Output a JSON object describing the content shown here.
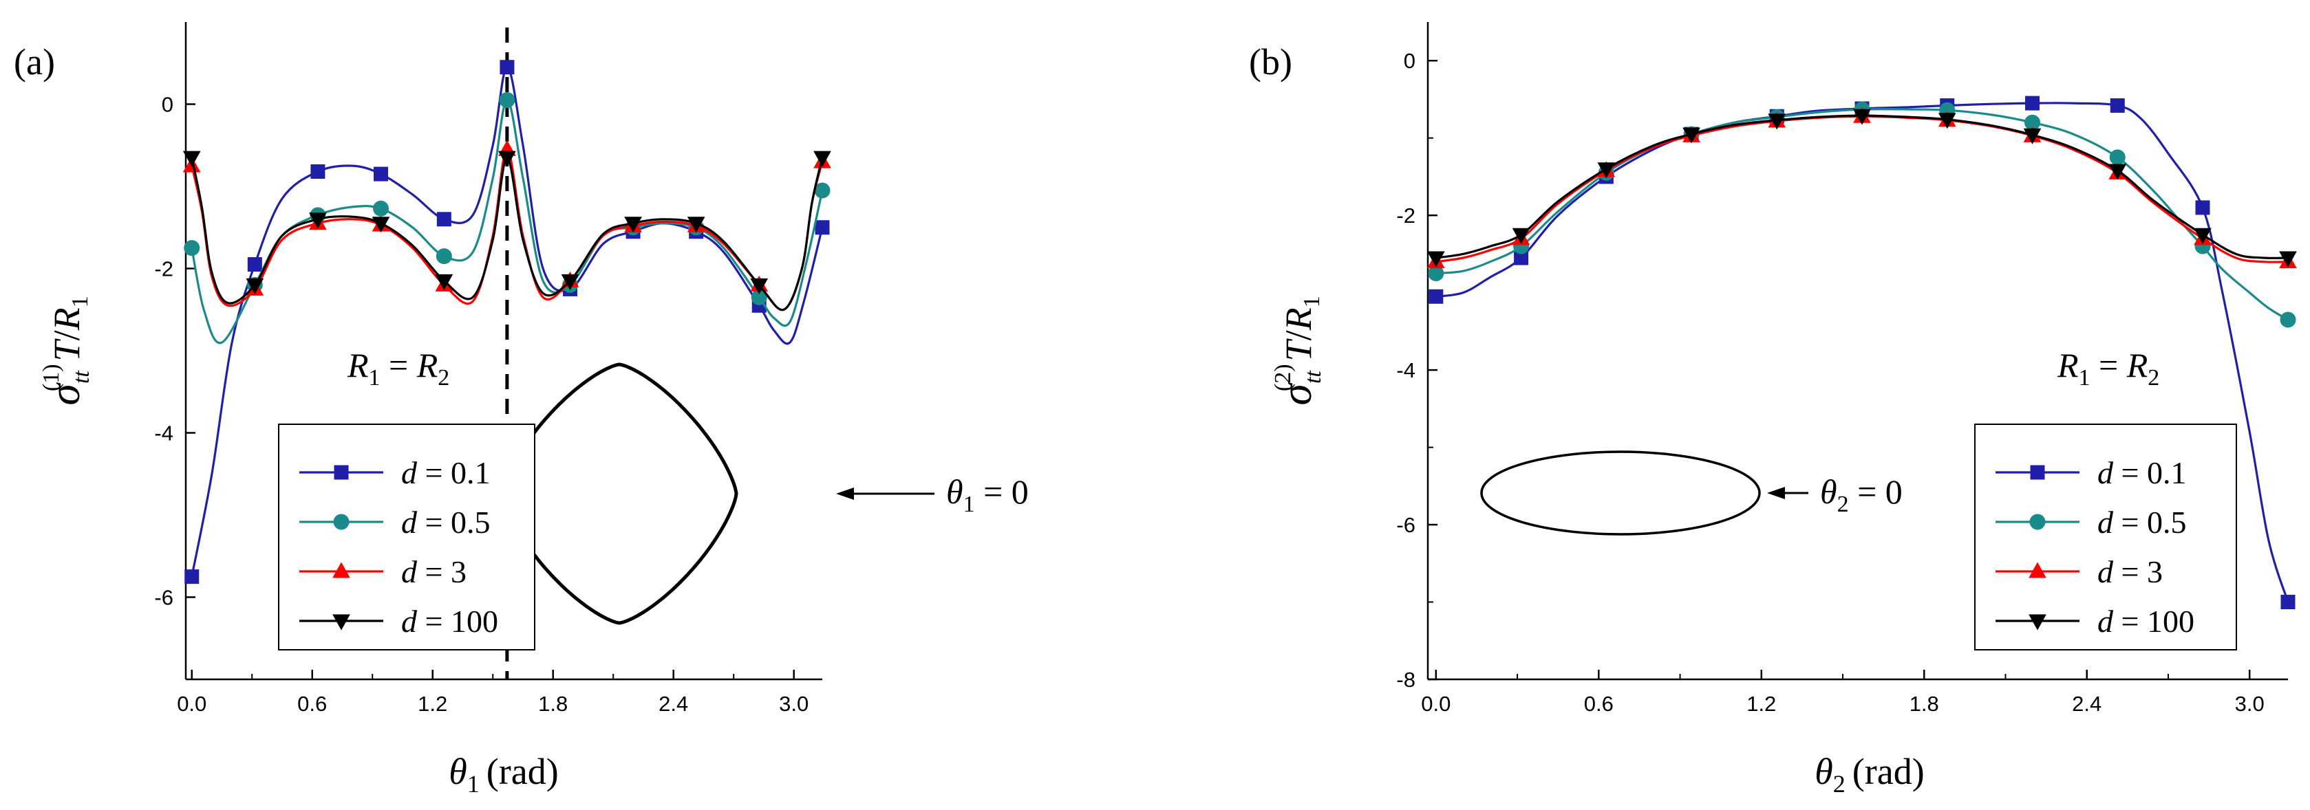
{
  "chart_data": [
    {
      "type": "line",
      "panel_label": "(a)",
      "xlabel": {
        "var": "θ",
        "sub": "1",
        "unit": "(rad)"
      },
      "ylabel": {
        "sigma": "σ",
        "sub": "tt",
        "sup": "(1)",
        "rest_T": "T",
        "rest_R": "R",
        "rest_sub": "1"
      },
      "xlim": [
        -0.03,
        3.1416
      ],
      "ylim": [
        -7,
        1
      ],
      "xticks": [
        0.0,
        0.6,
        1.2,
        1.8,
        2.4,
        3.0
      ],
      "xtick_labels": [
        "0.0",
        "0.6",
        "1.2",
        "1.8",
        "2.4",
        "3.0"
      ],
      "yticks": [
        0,
        -2,
        -4,
        -6
      ],
      "ytick_labels": [
        "0",
        "-2",
        "-4",
        "-6"
      ],
      "vline_x": 1.5708,
      "annotation": {
        "R": "R",
        "sub1": "1",
        "eq": " = ",
        "sub2": "2"
      },
      "inset": {
        "shape": "diamond",
        "label_var": "θ",
        "label_sub": "1",
        "label_val": " = 0"
      },
      "legend": {
        "position": "lower-left",
        "var": "d",
        "labels": [
          "0.1",
          "0.5",
          "3",
          "100"
        ]
      },
      "series": [
        {
          "name": "d = 0.1",
          "color": "#1f1fa8",
          "marker": "square",
          "x": [
            0,
            0.1,
            0.2,
            0.314,
            0.45,
            0.628,
            0.8,
            0.942,
            1.1,
            1.257,
            1.4,
            1.5,
            1.571,
            1.65,
            1.75,
            1.885,
            2.05,
            2.199,
            2.35,
            2.513,
            2.65,
            2.827,
            2.9,
            2.98,
            3.05,
            3.1416
          ],
          "y": [
            -5.75,
            -4.5,
            -2.9,
            -1.95,
            -1.15,
            -0.82,
            -0.75,
            -0.85,
            -1.1,
            -1.4,
            -1.35,
            -0.5,
            0.45,
            -0.5,
            -2.0,
            -2.25,
            -1.7,
            -1.55,
            -1.45,
            -1.55,
            -1.8,
            -2.45,
            -2.75,
            -2.9,
            -2.4,
            -1.5
          ],
          "mx": [
            0,
            0.314,
            0.628,
            0.942,
            1.257,
            1.571,
            1.885,
            2.199,
            2.513,
            2.827,
            3.1416
          ]
        },
        {
          "name": "d = 0.5",
          "color": "#1a8a8a",
          "marker": "circle",
          "x": [
            0,
            0.06,
            0.15,
            0.314,
            0.45,
            0.628,
            0.8,
            0.942,
            1.1,
            1.257,
            1.4,
            1.5,
            1.571,
            1.65,
            1.75,
            1.885,
            2.05,
            2.199,
            2.35,
            2.513,
            2.65,
            2.827,
            2.9,
            2.98,
            3.06,
            3.1416
          ],
          "y": [
            -1.75,
            -2.5,
            -2.9,
            -2.2,
            -1.6,
            -1.35,
            -1.25,
            -1.27,
            -1.5,
            -1.85,
            -1.8,
            -0.9,
            0.05,
            -0.9,
            -2.15,
            -2.2,
            -1.6,
            -1.5,
            -1.45,
            -1.5,
            -1.75,
            -2.35,
            -2.6,
            -2.65,
            -1.95,
            -1.05
          ],
          "mx": [
            0,
            0.314,
            0.628,
            0.942,
            1.257,
            1.571,
            1.885,
            2.199,
            2.513,
            2.827,
            3.1416
          ]
        },
        {
          "name": "d = 3",
          "color": "#ff0000",
          "marker": "triangle-up",
          "x": [
            0,
            0.05,
            0.1,
            0.18,
            0.314,
            0.45,
            0.628,
            0.8,
            0.942,
            1.1,
            1.257,
            1.4,
            1.5,
            1.571,
            1.65,
            1.75,
            1.885,
            2.05,
            2.199,
            2.35,
            2.513,
            2.65,
            2.827,
            2.95,
            3.04,
            3.09,
            3.1416
          ],
          "y": [
            -0.75,
            -1.3,
            -2.1,
            -2.45,
            -2.25,
            -1.65,
            -1.45,
            -1.4,
            -1.47,
            -1.75,
            -2.2,
            -2.4,
            -1.6,
            -0.55,
            -1.6,
            -2.35,
            -2.15,
            -1.6,
            -1.48,
            -1.43,
            -1.48,
            -1.7,
            -2.2,
            -2.5,
            -2.0,
            -1.2,
            -0.7
          ],
          "mx": [
            0,
            0.314,
            0.628,
            0.942,
            1.257,
            1.571,
            1.885,
            2.199,
            2.513,
            2.827,
            3.1416
          ]
        },
        {
          "name": "d = 100",
          "color": "#000000",
          "marker": "triangle-down",
          "x": [
            0,
            0.05,
            0.1,
            0.18,
            0.314,
            0.45,
            0.628,
            0.8,
            0.942,
            1.1,
            1.257,
            1.4,
            1.5,
            1.571,
            1.65,
            1.75,
            1.885,
            2.05,
            2.199,
            2.35,
            2.513,
            2.65,
            2.827,
            2.95,
            3.04,
            3.09,
            3.1416
          ],
          "y": [
            -0.65,
            -1.25,
            -2.05,
            -2.42,
            -2.2,
            -1.6,
            -1.4,
            -1.37,
            -1.45,
            -1.72,
            -2.15,
            -2.35,
            -1.65,
            -0.65,
            -1.65,
            -2.3,
            -2.15,
            -1.58,
            -1.45,
            -1.4,
            -1.45,
            -1.67,
            -2.2,
            -2.5,
            -2.0,
            -1.2,
            -0.65
          ],
          "mx": [
            0,
            0.314,
            0.628,
            0.942,
            1.257,
            1.571,
            1.885,
            2.199,
            2.513,
            2.827,
            3.1416
          ]
        }
      ]
    },
    {
      "type": "line",
      "panel_label": "(b)",
      "xlabel": {
        "var": "θ",
        "sub": "2",
        "unit": "(rad)"
      },
      "ylabel": {
        "sigma": "σ",
        "sub": "tt",
        "sup": "(2)",
        "rest_T": "T",
        "rest_R": "R",
        "rest_sub": "1"
      },
      "xlim": [
        -0.03,
        3.1416
      ],
      "ylim": [
        -8,
        0.5
      ],
      "xticks": [
        0.0,
        0.6,
        1.2,
        1.8,
        2.4,
        3.0
      ],
      "xtick_labels": [
        "0.0",
        "0.6",
        "1.2",
        "1.8",
        "2.4",
        "3.0"
      ],
      "yticks": [
        0,
        -2,
        -4,
        -6,
        -8
      ],
      "ytick_labels": [
        "0",
        "-2",
        "-4",
        "-6",
        "-8"
      ],
      "annotation": {
        "R": "R",
        "sub1": "1",
        "eq": " = ",
        "sub2": "2"
      },
      "inset": {
        "shape": "ellipse",
        "label_var": "θ",
        "label_sub": "2",
        "label_val": " = 0"
      },
      "legend": {
        "position": "lower-right",
        "var": "d",
        "labels": [
          "0.1",
          "0.5",
          "3",
          "100"
        ]
      },
      "series": [
        {
          "name": "d = 0.1",
          "color": "#1f1fa8",
          "marker": "square",
          "x": [
            0,
            0.1,
            0.2,
            0.314,
            0.45,
            0.628,
            0.8,
            0.942,
            1.1,
            1.257,
            1.4,
            1.571,
            1.75,
            1.885,
            2.05,
            2.199,
            2.35,
            2.513,
            2.6,
            2.7,
            2.827,
            2.9,
            3.0,
            3.07,
            3.1416
          ],
          "y": [
            -3.05,
            -3.0,
            -2.8,
            -2.55,
            -2.0,
            -1.5,
            -1.15,
            -0.95,
            -0.8,
            -0.72,
            -0.65,
            -0.62,
            -0.6,
            -0.58,
            -0.56,
            -0.55,
            -0.55,
            -0.58,
            -0.75,
            -1.2,
            -1.9,
            -3.0,
            -4.8,
            -6.2,
            -7.0
          ],
          "mx": [
            0,
            0.314,
            0.628,
            0.942,
            1.257,
            1.571,
            1.885,
            2.199,
            2.513,
            2.827,
            3.1416
          ]
        },
        {
          "name": "d = 0.5",
          "color": "#1a8a8a",
          "marker": "circle",
          "x": [
            0,
            0.1,
            0.2,
            0.314,
            0.45,
            0.628,
            0.8,
            0.942,
            1.1,
            1.257,
            1.4,
            1.571,
            1.75,
            1.885,
            2.05,
            2.199,
            2.35,
            2.513,
            2.65,
            2.75,
            2.827,
            2.9,
            3.0,
            3.07,
            3.1416
          ],
          "y": [
            -2.75,
            -2.72,
            -2.6,
            -2.4,
            -1.95,
            -1.45,
            -1.12,
            -0.95,
            -0.8,
            -0.73,
            -0.67,
            -0.63,
            -0.63,
            -0.64,
            -0.7,
            -0.8,
            -0.95,
            -1.25,
            -1.7,
            -2.1,
            -2.4,
            -2.7,
            -3.0,
            -3.2,
            -3.35
          ],
          "mx": [
            0,
            0.314,
            0.628,
            0.942,
            1.257,
            1.571,
            1.885,
            2.199,
            2.513,
            2.827,
            3.1416
          ]
        },
        {
          "name": "d = 3",
          "color": "#ff0000",
          "marker": "triangle-up",
          "x": [
            0,
            0.1,
            0.2,
            0.314,
            0.45,
            0.628,
            0.8,
            0.942,
            1.1,
            1.257,
            1.4,
            1.571,
            1.75,
            1.885,
            2.05,
            2.199,
            2.35,
            2.513,
            2.65,
            2.827,
            2.95,
            3.05,
            3.1416
          ],
          "y": [
            -2.6,
            -2.55,
            -2.45,
            -2.3,
            -1.85,
            -1.42,
            -1.12,
            -0.97,
            -0.85,
            -0.78,
            -0.74,
            -0.72,
            -0.74,
            -0.77,
            -0.85,
            -0.97,
            -1.15,
            -1.45,
            -1.85,
            -2.3,
            -2.55,
            -2.6,
            -2.6
          ],
          "mx": [
            0,
            0.314,
            0.628,
            0.942,
            1.257,
            1.571,
            1.885,
            2.199,
            2.513,
            2.827,
            3.1416
          ]
        },
        {
          "name": "d = 100",
          "color": "#000000",
          "marker": "triangle-down",
          "x": [
            0,
            0.1,
            0.2,
            0.314,
            0.45,
            0.628,
            0.8,
            0.942,
            1.1,
            1.257,
            1.4,
            1.571,
            1.75,
            1.885,
            2.05,
            2.199,
            2.35,
            2.513,
            2.65,
            2.827,
            2.95,
            3.05,
            3.1416
          ],
          "y": [
            -2.55,
            -2.5,
            -2.4,
            -2.25,
            -1.82,
            -1.4,
            -1.1,
            -0.95,
            -0.83,
            -0.77,
            -0.73,
            -0.71,
            -0.73,
            -0.76,
            -0.84,
            -0.96,
            -1.13,
            -1.42,
            -1.82,
            -2.25,
            -2.5,
            -2.55,
            -2.55
          ],
          "mx": [
            0,
            0.314,
            0.628,
            0.942,
            1.257,
            1.571,
            1.885,
            2.199,
            2.513,
            2.827,
            3.1416
          ]
        }
      ]
    }
  ]
}
